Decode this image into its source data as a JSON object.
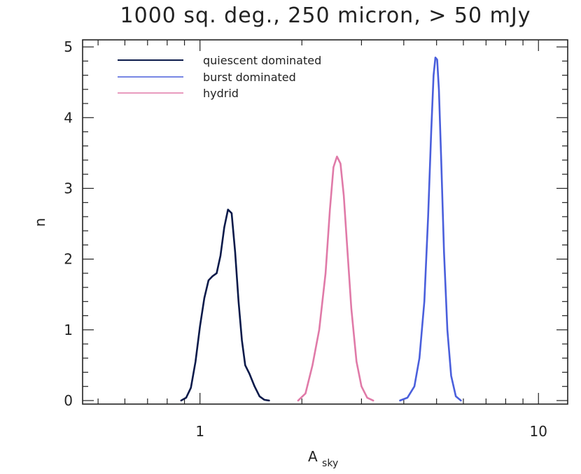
{
  "chart_data": {
    "type": "line",
    "title": "1000 sq. deg., 250 micron, > 50 mJy",
    "xlabel": "A",
    "xlabel_sub": "sky",
    "ylabel": "n",
    "xscale": "log",
    "xlim": [
      0.45,
      12.2
    ],
    "ylim": [
      -0.05,
      5.1
    ],
    "x_tick_labels": [
      {
        "value": 1,
        "label": "1"
      },
      {
        "value": 10,
        "label": "10"
      }
    ],
    "y_tick_labels": [
      {
        "value": 0,
        "label": "0"
      },
      {
        "value": 1,
        "label": "1"
      },
      {
        "value": 2,
        "label": "2"
      },
      {
        "value": 3,
        "label": "3"
      },
      {
        "value": 4,
        "label": "4"
      },
      {
        "value": 5,
        "label": "5"
      }
    ],
    "legend_position": "top-left",
    "series": [
      {
        "name": "quiescent dominated",
        "color": "#0b1a4a",
        "x": [
          0.88,
          0.91,
          0.94,
          0.97,
          1.0,
          1.03,
          1.06,
          1.09,
          1.12,
          1.15,
          1.18,
          1.21,
          1.24,
          1.27,
          1.3,
          1.33,
          1.36,
          1.4,
          1.45,
          1.5,
          1.55,
          1.6
        ],
        "y": [
          0.0,
          0.04,
          0.18,
          0.55,
          1.05,
          1.45,
          1.7,
          1.76,
          1.8,
          2.05,
          2.45,
          2.7,
          2.65,
          2.1,
          1.4,
          0.85,
          0.5,
          0.38,
          0.2,
          0.06,
          0.01,
          0.0
        ]
      },
      {
        "name": "burst dominated",
        "color": "#4a5fdc",
        "x": [
          3.9,
          4.1,
          4.3,
          4.45,
          4.6,
          4.72,
          4.82,
          4.9,
          4.96,
          5.02,
          5.08,
          5.16,
          5.26,
          5.38,
          5.52,
          5.7,
          5.9
        ],
        "y": [
          0.0,
          0.04,
          0.2,
          0.6,
          1.4,
          2.6,
          3.8,
          4.6,
          4.85,
          4.82,
          4.4,
          3.4,
          2.1,
          1.0,
          0.35,
          0.06,
          0.0
        ]
      },
      {
        "name": "hydrid",
        "color": "#e07aa8",
        "x": [
          1.95,
          2.05,
          2.15,
          2.25,
          2.35,
          2.42,
          2.48,
          2.54,
          2.6,
          2.66,
          2.72,
          2.8,
          2.9,
          3.0,
          3.12,
          3.25
        ],
        "y": [
          0.0,
          0.1,
          0.5,
          1.0,
          1.8,
          2.7,
          3.3,
          3.45,
          3.35,
          2.9,
          2.2,
          1.3,
          0.55,
          0.2,
          0.04,
          0.0
        ]
      }
    ]
  }
}
